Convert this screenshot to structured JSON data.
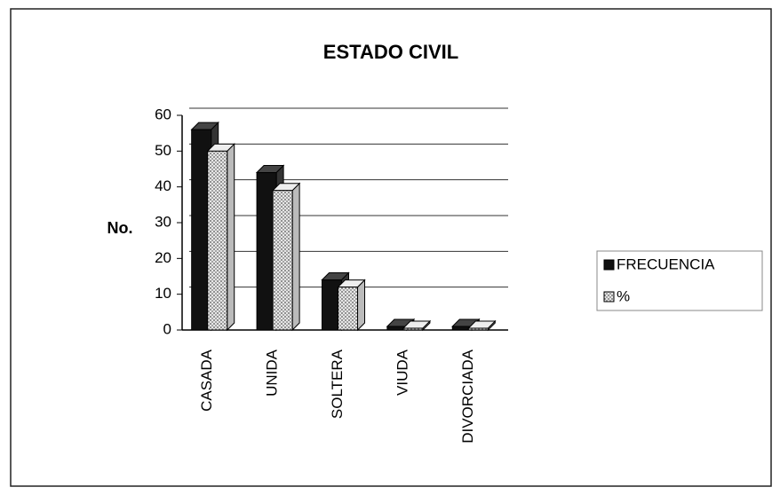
{
  "chart_data": {
    "type": "bar",
    "title": "ESTADO CIVIL",
    "y_label": "No.",
    "categories": [
      "CASADA",
      "UNIDA",
      "SOLTERA",
      "VIUDA",
      "DIVORCIADA"
    ],
    "series": [
      {
        "name": "FRECUENCIA",
        "color": "#111111",
        "values": [
          56,
          44,
          14,
          1,
          1
        ]
      },
      {
        "name": "%",
        "color": "#d8d8d8",
        "values": [
          50,
          39,
          12,
          0.5,
          0.5
        ]
      }
    ],
    "ylim": [
      0,
      60
    ],
    "yticks": [
      0,
      10,
      20,
      30,
      40,
      50,
      60
    ],
    "grid": true,
    "legend": "right"
  }
}
